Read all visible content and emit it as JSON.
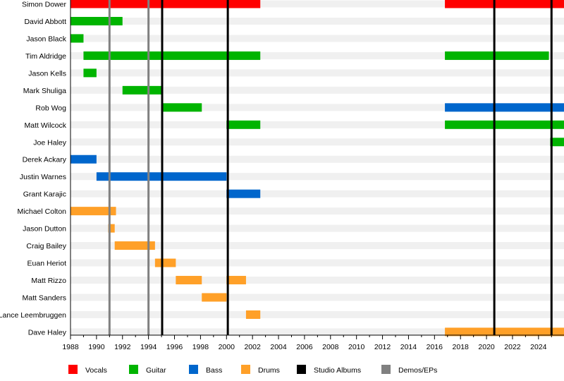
{
  "chart_data": {
    "type": "timeline",
    "title": "",
    "xlim": [
      1988,
      2026
    ],
    "x_ticks": [
      1988,
      1990,
      1992,
      1994,
      1996,
      1998,
      2000,
      2002,
      2004,
      2006,
      2008,
      2010,
      2012,
      2014,
      2016,
      2018,
      2020,
      2022,
      2024
    ],
    "colors": {
      "Vocals": "#ff0000",
      "Guitar": "#00b400",
      "Bass": "#0066cc",
      "Drums": "#ffa028",
      "Studio Albums": "#000000",
      "Demos/EPs": "#808080",
      "stripe": "#f0f0f0"
    },
    "members": [
      {
        "name": "Simon Dower",
        "periods": [
          {
            "role": "Vocals",
            "start": 1988,
            "end": 2002.6
          },
          {
            "role": "Vocals",
            "start": 2016.8,
            "end": 2026
          }
        ]
      },
      {
        "name": "David Abbott",
        "periods": [
          {
            "role": "Guitar",
            "start": 1988,
            "end": 1992
          }
        ]
      },
      {
        "name": "Jason Black",
        "periods": [
          {
            "role": "Guitar",
            "start": 1988,
            "end": 1989
          }
        ]
      },
      {
        "name": "Tim Aldridge",
        "periods": [
          {
            "role": "Guitar",
            "start": 1989,
            "end": 2002.6
          },
          {
            "role": "Guitar",
            "start": 2016.8,
            "end": 2024.8
          }
        ]
      },
      {
        "name": "Jason Kells",
        "periods": [
          {
            "role": "Guitar",
            "start": 1989,
            "end": 1990
          }
        ]
      },
      {
        "name": "Mark Shuliga",
        "periods": [
          {
            "role": "Guitar",
            "start": 1992,
            "end": 1995
          }
        ]
      },
      {
        "name": "Rob Wog",
        "periods": [
          {
            "role": "Guitar",
            "start": 1995,
            "end": 1998.1
          },
          {
            "role": "Bass",
            "start": 2016.8,
            "end": 2026
          }
        ]
      },
      {
        "name": "Matt Wilcock",
        "periods": [
          {
            "role": "Guitar",
            "start": 2000,
            "end": 2002.6
          },
          {
            "role": "Guitar",
            "start": 2016.8,
            "end": 2026
          }
        ]
      },
      {
        "name": "Joe Haley",
        "periods": [
          {
            "role": "Guitar",
            "start": 2024.9,
            "end": 2026
          }
        ]
      },
      {
        "name": "Derek Ackary",
        "periods": [
          {
            "role": "Bass",
            "start": 1988,
            "end": 1990
          }
        ]
      },
      {
        "name": "Justin Warnes",
        "periods": [
          {
            "role": "Bass",
            "start": 1990,
            "end": 2000
          }
        ]
      },
      {
        "name": "Grant Karajic",
        "periods": [
          {
            "role": "Bass",
            "start": 2000,
            "end": 2002.6
          }
        ]
      },
      {
        "name": "Michael Colton",
        "periods": [
          {
            "role": "Drums",
            "start": 1988,
            "end": 1991.5
          }
        ]
      },
      {
        "name": "Jason Dutton",
        "periods": [
          {
            "role": "Drums",
            "start": 1990.9,
            "end": 1991.4
          }
        ]
      },
      {
        "name": "Craig Bailey",
        "periods": [
          {
            "role": "Drums",
            "start": 1991.4,
            "end": 1994.5
          }
        ]
      },
      {
        "name": "Euan Heriot",
        "periods": [
          {
            "role": "Drums",
            "start": 1994.5,
            "end": 1996.1
          }
        ]
      },
      {
        "name": "Matt Rizzo",
        "periods": [
          {
            "role": "Drums",
            "start": 1996.1,
            "end": 1998.1
          },
          {
            "role": "Drums",
            "start": 2000,
            "end": 2001.5
          }
        ]
      },
      {
        "name": "Matt Sanders",
        "periods": [
          {
            "role": "Drums",
            "start": 1998.1,
            "end": 2000
          }
        ]
      },
      {
        "name": "Lance Leembruggen",
        "periods": [
          {
            "role": "Drums",
            "start": 2001.5,
            "end": 2002.6
          }
        ]
      },
      {
        "name": "Dave Haley",
        "periods": [
          {
            "role": "Drums",
            "start": 2016.8,
            "end": 2026
          }
        ]
      }
    ],
    "studio_albums": [
      1995.05,
      2000.1,
      2020.6,
      2025.0
    ],
    "demos_eps": [
      1991,
      1994
    ],
    "legend": [
      "Vocals",
      "Guitar",
      "Bass",
      "Drums",
      "Studio Albums",
      "Demos/EPs"
    ],
    "legend_placement": "bottom"
  }
}
